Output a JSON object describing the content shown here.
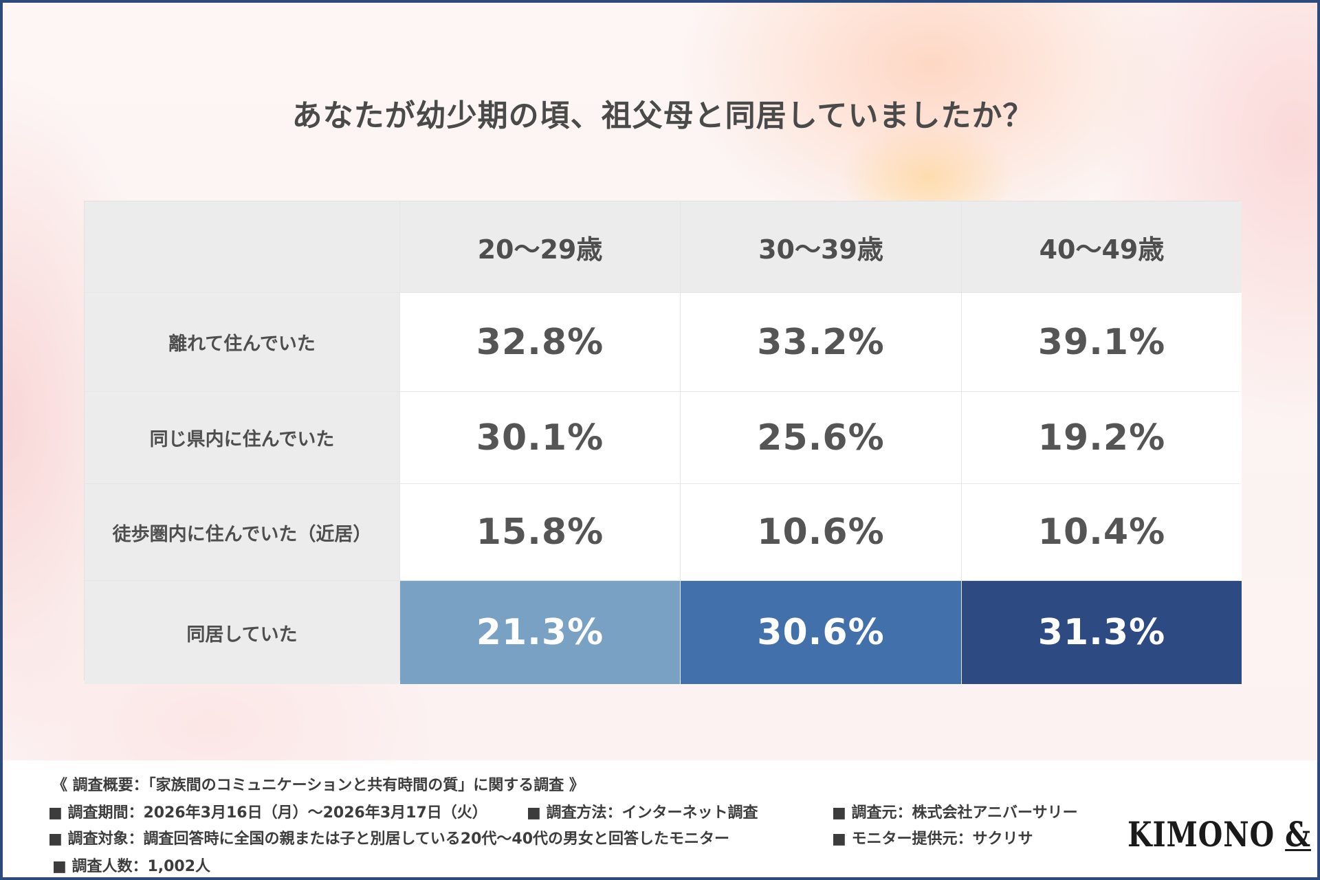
{
  "title": "あなたが幼少期の頃、祖父母と同居していましたか？",
  "colors": {
    "highlight": [
      "#78a1c4",
      "#4270aa",
      "#2d4a82"
    ],
    "header_bg": "#ececec",
    "border": "#2c4a7c"
  },
  "chart_data": {
    "type": "table",
    "title": "あなたが幼少期の頃、祖父母と同居していましたか？",
    "columns": [
      "20～29歳",
      "30～39歳",
      "40～49歳"
    ],
    "rows": [
      {
        "label": "離れて住んでいた",
        "values": [
          "32.8%",
          "33.2%",
          "39.1%"
        ]
      },
      {
        "label": "同じ県内に住んでいた",
        "values": [
          "30.1%",
          "25.6%",
          "19.2%"
        ]
      },
      {
        "label": "徒歩圏内に住んでいた（近居）",
        "values": [
          "15.8%",
          "10.6%",
          "10.4%"
        ]
      },
      {
        "label": "同居していた",
        "values": [
          "21.3%",
          "30.6%",
          "31.3%"
        ]
      }
    ]
  },
  "footer": {
    "heading": "《 調査概要：「家族間のコミュニケーションと共有時間の質」に関する調査 》",
    "period": "■ 調査期間：2026年3月16日（月）～2026年3月17日（火）",
    "method": "■ 調査方法：インターネット調査",
    "source": "■ 調査元：株式会社アニバーサリー",
    "target": "■ 調査対象：調査回答時に全国の親または子と別居している20代～40代の男女と回答したモニター",
    "provider": "■ モニター提供元：サクリサ",
    "count": "■ 調査人数：1,002人"
  },
  "logo": {
    "text": "KIMONO",
    "amp": "&"
  }
}
